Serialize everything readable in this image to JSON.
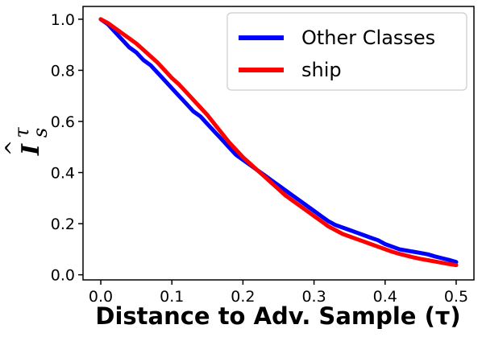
{
  "chart_data": {
    "type": "line",
    "xlabel": "Distance to Adv. Sample (τ)",
    "ylabel": {
      "main": "I",
      "hat": "^",
      "sup": "τ",
      "sub": "s"
    },
    "xlim": [
      -0.025,
      0.525
    ],
    "ylim": [
      -0.02,
      1.05
    ],
    "xticks": [
      0.0,
      0.1,
      0.2,
      0.3,
      0.4,
      0.5
    ],
    "xtick_labels": [
      "0.0",
      "0.1",
      "0.2",
      "0.3",
      "0.4",
      "0.5"
    ],
    "yticks": [
      0.0,
      0.2,
      0.4,
      0.6,
      0.8,
      1.0
    ],
    "ytick_labels": [
      "0.0",
      "0.2",
      "0.4",
      "0.6",
      "0.8",
      "1.0"
    ],
    "grid": false,
    "legend_position": "top-right",
    "series": [
      {
        "name": "Other Classes",
        "color": "#0000ff",
        "x": [
          0.0,
          0.01,
          0.02,
          0.03,
          0.04,
          0.05,
          0.06,
          0.07,
          0.08,
          0.09,
          0.1,
          0.11,
          0.12,
          0.13,
          0.14,
          0.15,
          0.16,
          0.17,
          0.18,
          0.19,
          0.2,
          0.21,
          0.22,
          0.23,
          0.24,
          0.25,
          0.26,
          0.27,
          0.28,
          0.29,
          0.3,
          0.31,
          0.32,
          0.33,
          0.34,
          0.35,
          0.36,
          0.37,
          0.38,
          0.39,
          0.4,
          0.41,
          0.42,
          0.43,
          0.44,
          0.45,
          0.46,
          0.47,
          0.48,
          0.49,
          0.5
        ],
        "y": [
          1.0,
          0.98,
          0.95,
          0.92,
          0.89,
          0.87,
          0.84,
          0.82,
          0.79,
          0.76,
          0.73,
          0.7,
          0.67,
          0.64,
          0.62,
          0.59,
          0.56,
          0.53,
          0.5,
          0.47,
          0.45,
          0.43,
          0.41,
          0.39,
          0.37,
          0.35,
          0.33,
          0.31,
          0.29,
          0.27,
          0.25,
          0.23,
          0.21,
          0.195,
          0.185,
          0.175,
          0.165,
          0.155,
          0.145,
          0.135,
          0.12,
          0.11,
          0.1,
          0.095,
          0.09,
          0.085,
          0.08,
          0.072,
          0.065,
          0.058,
          0.05
        ]
      },
      {
        "name": "ship",
        "color": "#ff0000",
        "x": [
          0.0,
          0.01,
          0.02,
          0.03,
          0.04,
          0.05,
          0.06,
          0.07,
          0.08,
          0.09,
          0.1,
          0.11,
          0.12,
          0.13,
          0.14,
          0.15,
          0.16,
          0.17,
          0.18,
          0.19,
          0.2,
          0.21,
          0.22,
          0.23,
          0.24,
          0.25,
          0.26,
          0.27,
          0.28,
          0.29,
          0.3,
          0.31,
          0.32,
          0.33,
          0.34,
          0.35,
          0.36,
          0.37,
          0.38,
          0.39,
          0.4,
          0.41,
          0.42,
          0.43,
          0.44,
          0.45,
          0.46,
          0.47,
          0.48,
          0.49,
          0.5
        ],
        "y": [
          1.0,
          0.985,
          0.965,
          0.945,
          0.925,
          0.905,
          0.88,
          0.855,
          0.83,
          0.8,
          0.77,
          0.745,
          0.715,
          0.685,
          0.655,
          0.625,
          0.59,
          0.555,
          0.52,
          0.49,
          0.46,
          0.435,
          0.41,
          0.385,
          0.36,
          0.335,
          0.31,
          0.29,
          0.27,
          0.25,
          0.23,
          0.21,
          0.19,
          0.175,
          0.16,
          0.15,
          0.14,
          0.13,
          0.12,
          0.11,
          0.1,
          0.09,
          0.082,
          0.075,
          0.068,
          0.062,
          0.057,
          0.052,
          0.047,
          0.042,
          0.038
        ]
      }
    ]
  }
}
